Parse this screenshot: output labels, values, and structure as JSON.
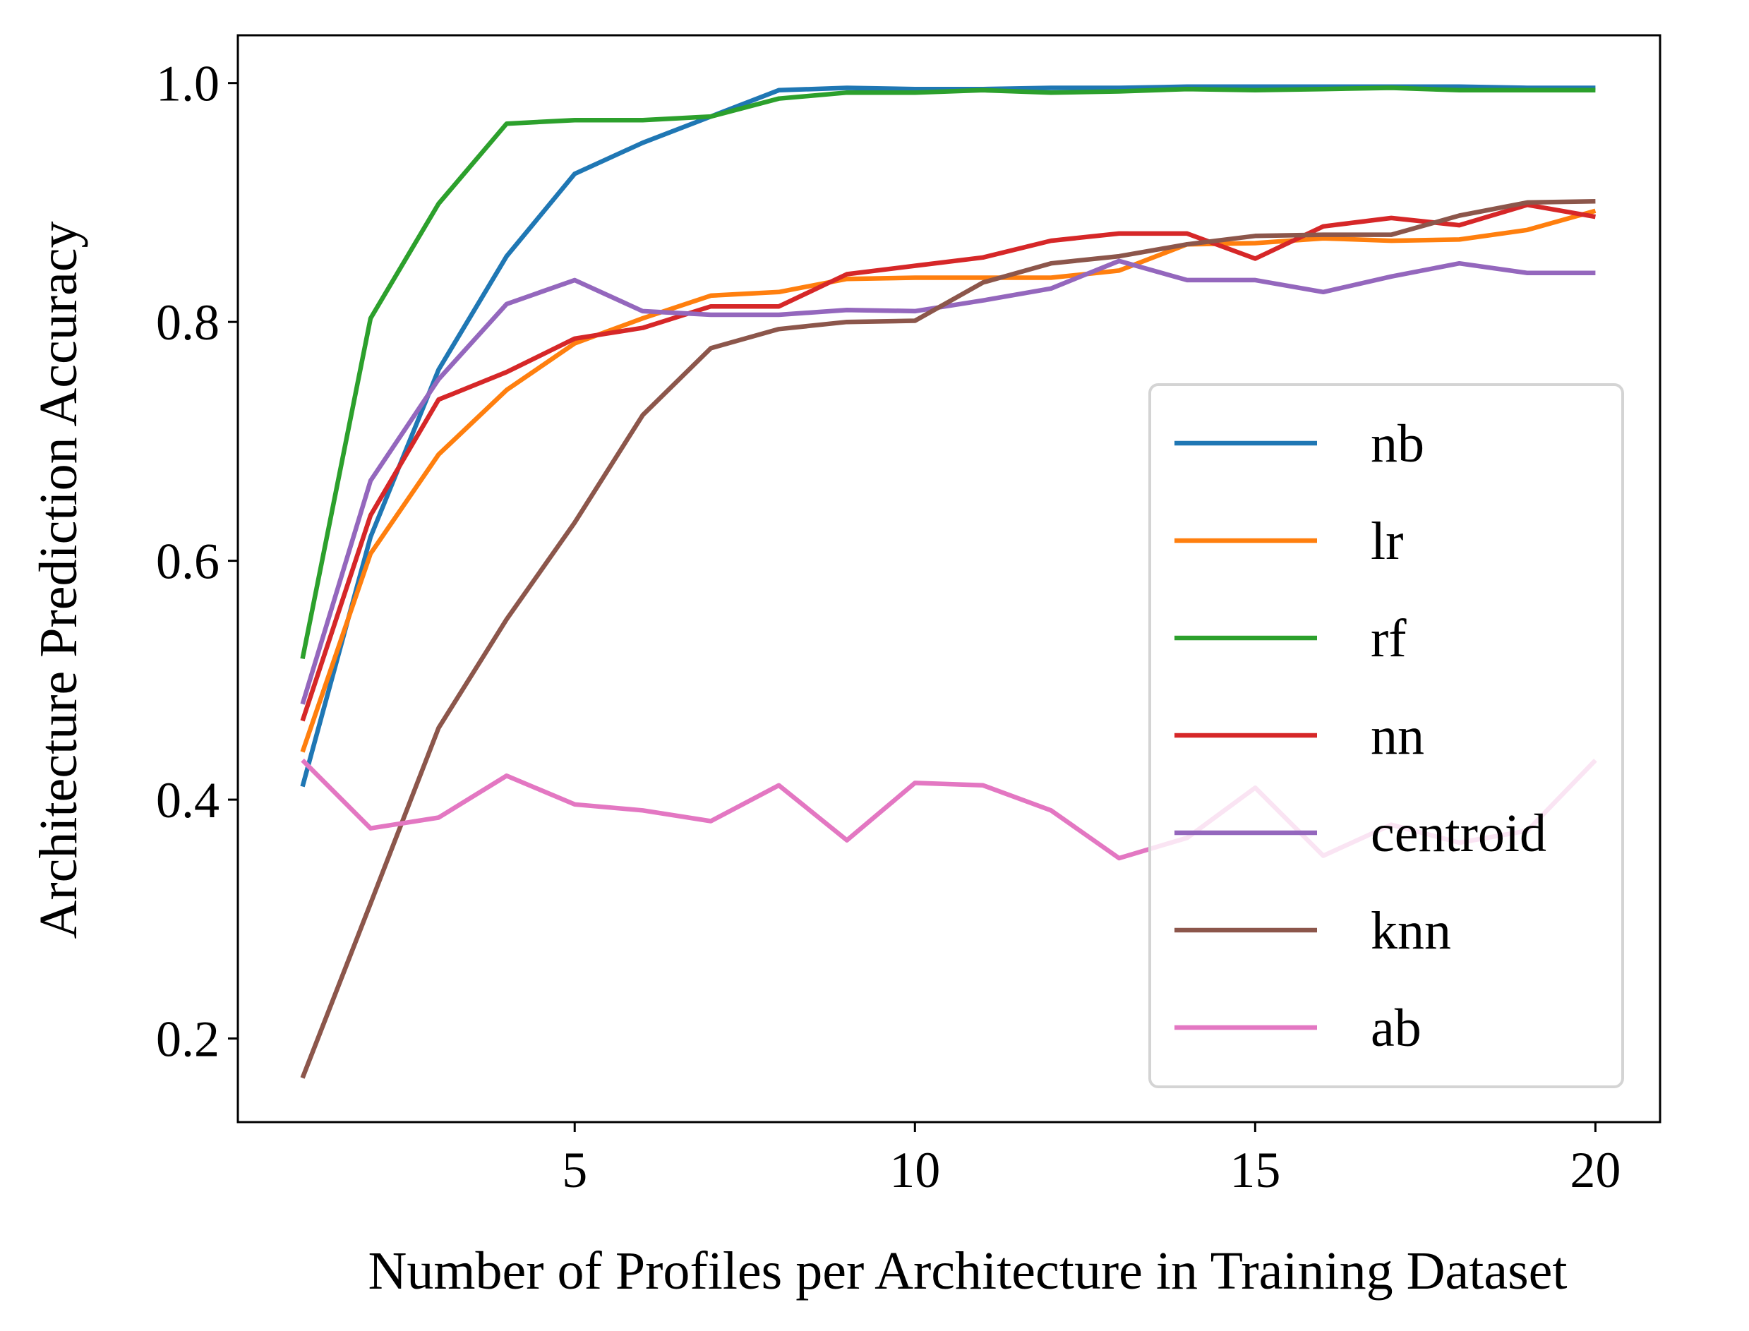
{
  "chart_data": {
    "type": "line",
    "title": "",
    "xlabel": "Number of Profiles per Architecture in Training Dataset",
    "ylabel": "Architecture Prediction Accuracy",
    "xlim": [
      0.05,
      20.95
    ],
    "ylim": [
      0.13,
      1.04
    ],
    "xticks": [
      5,
      10,
      15,
      20
    ],
    "xtick_labels": [
      "5",
      "10",
      "15",
      "20"
    ],
    "yticks": [
      0.2,
      0.4,
      0.6,
      0.8,
      1.0
    ],
    "ytick_labels": [
      "0.2",
      "0.4",
      "0.6",
      "0.8",
      "1.0"
    ],
    "grid": false,
    "legend_position": "lower-right",
    "x": [
      1,
      2,
      3,
      4,
      5,
      6,
      7,
      8,
      9,
      10,
      11,
      12,
      13,
      14,
      15,
      16,
      17,
      18,
      19,
      20
    ],
    "series": [
      {
        "name": "nb",
        "color": "#1f77b4",
        "values": [
          0.411,
          0.62,
          0.76,
          0.855,
          0.924,
          0.95,
          0.972,
          0.994,
          0.996,
          0.995,
          0.995,
          0.996,
          0.996,
          0.997,
          0.997,
          0.997,
          0.997,
          0.997,
          0.996,
          0.996
        ]
      },
      {
        "name": "lr",
        "color": "#ff7f0e",
        "values": [
          0.44,
          0.606,
          0.689,
          0.743,
          0.782,
          0.803,
          0.822,
          0.825,
          0.836,
          0.837,
          0.837,
          0.837,
          0.843,
          0.865,
          0.866,
          0.87,
          0.868,
          0.869,
          0.877,
          0.893
        ]
      },
      {
        "name": "rf",
        "color": "#2ca02c",
        "values": [
          0.518,
          0.803,
          0.899,
          0.966,
          0.969,
          0.969,
          0.972,
          0.987,
          0.992,
          0.992,
          0.994,
          0.992,
          0.993,
          0.995,
          0.994,
          0.995,
          0.996,
          0.994,
          0.994,
          0.994
        ]
      },
      {
        "name": "nn",
        "color": "#d62728",
        "values": [
          0.466,
          0.638,
          0.735,
          0.758,
          0.786,
          0.795,
          0.813,
          0.813,
          0.84,
          0.847,
          0.854,
          0.868,
          0.874,
          0.874,
          0.853,
          0.88,
          0.887,
          0.881,
          0.898,
          0.888
        ]
      },
      {
        "name": "centroid",
        "color": "#9467bd",
        "values": [
          0.48,
          0.667,
          0.752,
          0.815,
          0.835,
          0.809,
          0.806,
          0.806,
          0.81,
          0.809,
          0.818,
          0.828,
          0.851,
          0.835,
          0.835,
          0.825,
          0.838,
          0.849,
          0.841,
          0.841
        ]
      },
      {
        "name": "knn",
        "color": "#8c564b",
        "values": [
          0.167,
          0.313,
          0.46,
          0.551,
          0.632,
          0.722,
          0.778,
          0.794,
          0.8,
          0.801,
          0.833,
          0.849,
          0.855,
          0.865,
          0.872,
          0.873,
          0.873,
          0.889,
          0.9,
          0.901
        ]
      },
      {
        "name": "ab",
        "color": "#e377c2",
        "values": [
          0.433,
          0.376,
          0.385,
          0.42,
          0.396,
          0.391,
          0.382,
          0.412,
          0.366,
          0.414,
          0.412,
          0.391,
          0.351,
          0.368,
          0.41,
          0.353,
          0.379,
          0.364,
          0.374,
          0.433
        ]
      }
    ]
  }
}
